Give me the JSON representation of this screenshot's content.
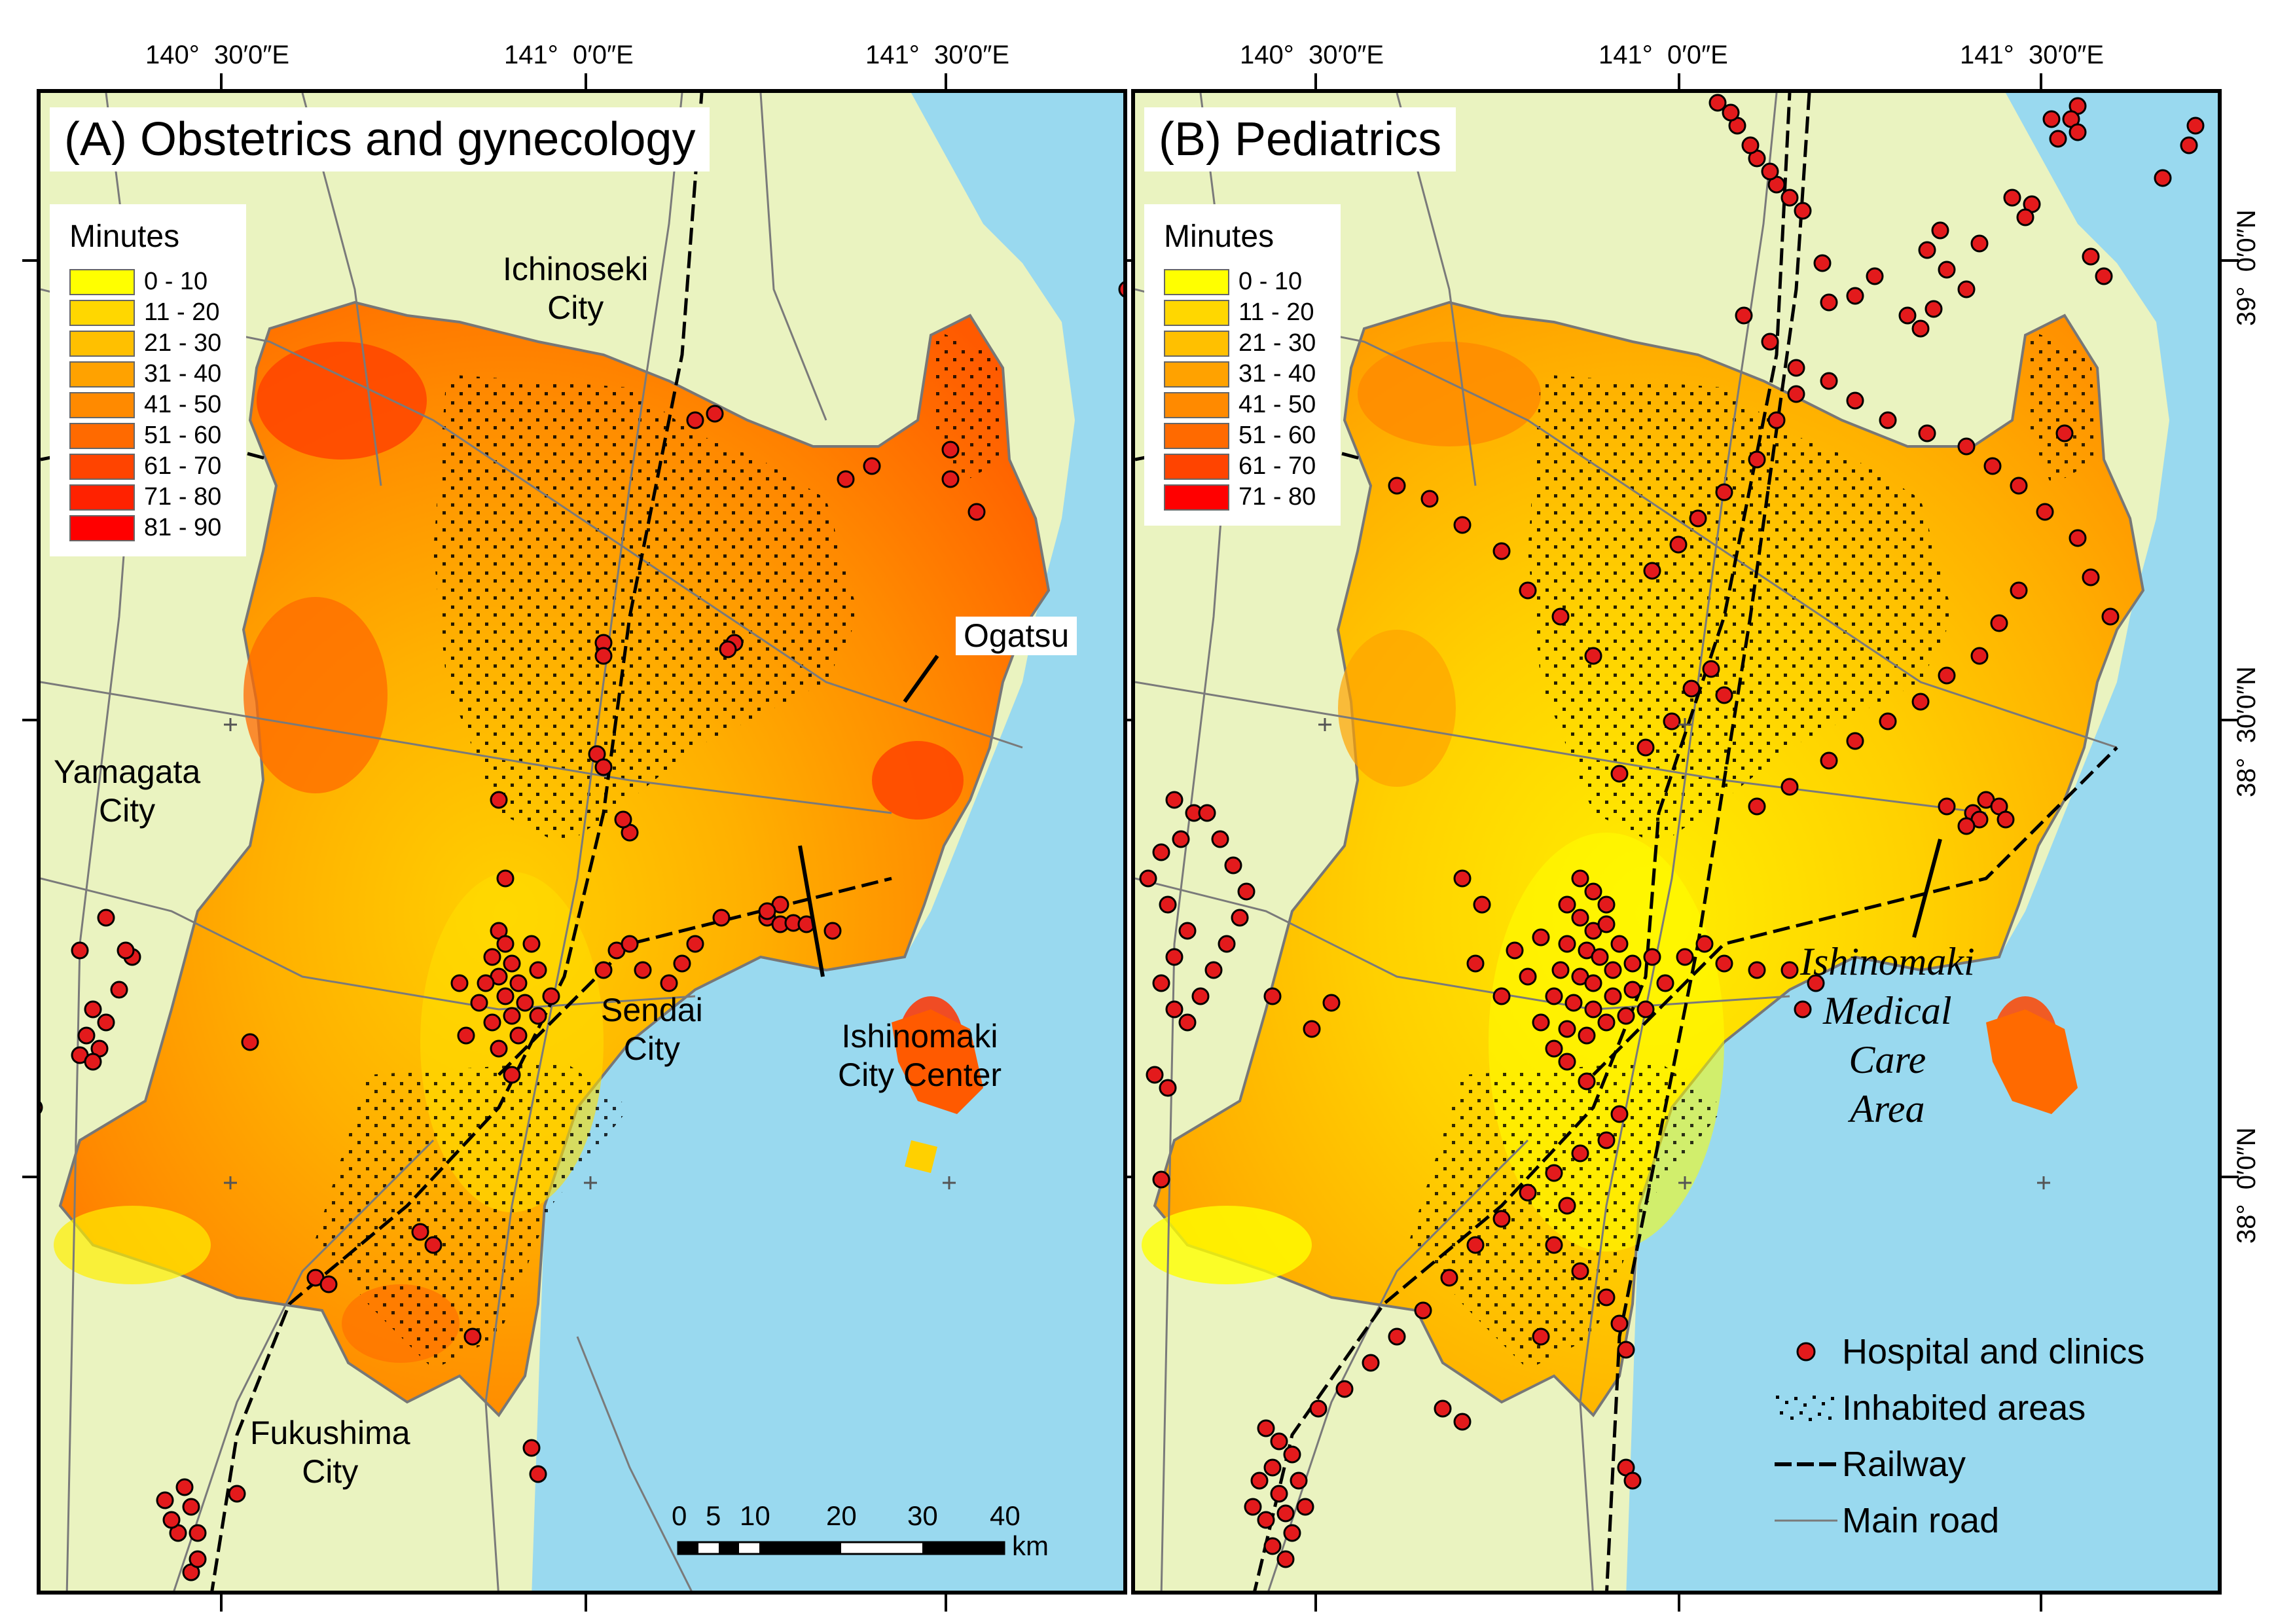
{
  "panel_a": {
    "title": "(A) Obstetrics and  gynecology",
    "legend_title": "Minutes",
    "legend": [
      {
        "label": "0 - 10",
        "color": "#ffff00"
      },
      {
        "label": "11 - 20",
        "color": "#ffd700"
      },
      {
        "label": "21 - 30",
        "color": "#ffc000"
      },
      {
        "label": "31 - 40",
        "color": "#ffa200"
      },
      {
        "label": "41 - 50",
        "color": "#ff8a00"
      },
      {
        "label": "51 - 60",
        "color": "#ff6a00"
      },
      {
        "label": "61 - 70",
        "color": "#ff4400"
      },
      {
        "label": "71 - 80",
        "color": "#ff2200"
      },
      {
        "label": "81 - 90",
        "color": "#ff0000"
      }
    ],
    "places": {
      "ichinoseki": "Ichinoseki\nCity",
      "ogatsu": "Ogatsu",
      "yamagata": "Yamagata\nCity",
      "sendai": "Sendai\nCity",
      "ishinomaki_center": "Ishinomaki\nCity Center",
      "fukushima": "Fukushima\nCity"
    },
    "scale": {
      "ticks": [
        "0",
        "5",
        "10",
        "20",
        "30",
        "40"
      ],
      "unit": "km"
    }
  },
  "panel_b": {
    "title": "(B) Pediatrics",
    "legend_title": "Minutes",
    "legend": [
      {
        "label": "0 - 10",
        "color": "#ffff00"
      },
      {
        "label": "11 - 20",
        "color": "#ffd700"
      },
      {
        "label": "21 - 30",
        "color": "#ffc000"
      },
      {
        "label": "31 - 40",
        "color": "#ffa200"
      },
      {
        "label": "41 - 50",
        "color": "#ff8a00"
      },
      {
        "label": "51 - 60",
        "color": "#ff6a00"
      },
      {
        "label": "61 - 70",
        "color": "#ff4400"
      },
      {
        "label": "71 - 80",
        "color": "#ff0000"
      }
    ],
    "places": {
      "ishinomaki_area": "Ishinomaki\nMedical\nCare\nArea"
    },
    "map_legend": {
      "hospitals": "Hospital and clinics",
      "inhabited": "Inhabited areas",
      "railway": "Railway",
      "main_road": "Main road"
    }
  },
  "top_ticks": {
    "t1": "140°  30′0″E",
    "t2": "141°  0′0″E",
    "t3": "141°  30′0″E"
  },
  "right_ticks": {
    "r1": "39°  0′0″N",
    "r2": "38°  30′0″N",
    "r3": "38°  0′0″N"
  },
  "colors": {
    "sea": "#99d9ef",
    "land": "#eaf3c0",
    "hospital": "#e31a1c",
    "road": "#7a7a7a"
  }
}
